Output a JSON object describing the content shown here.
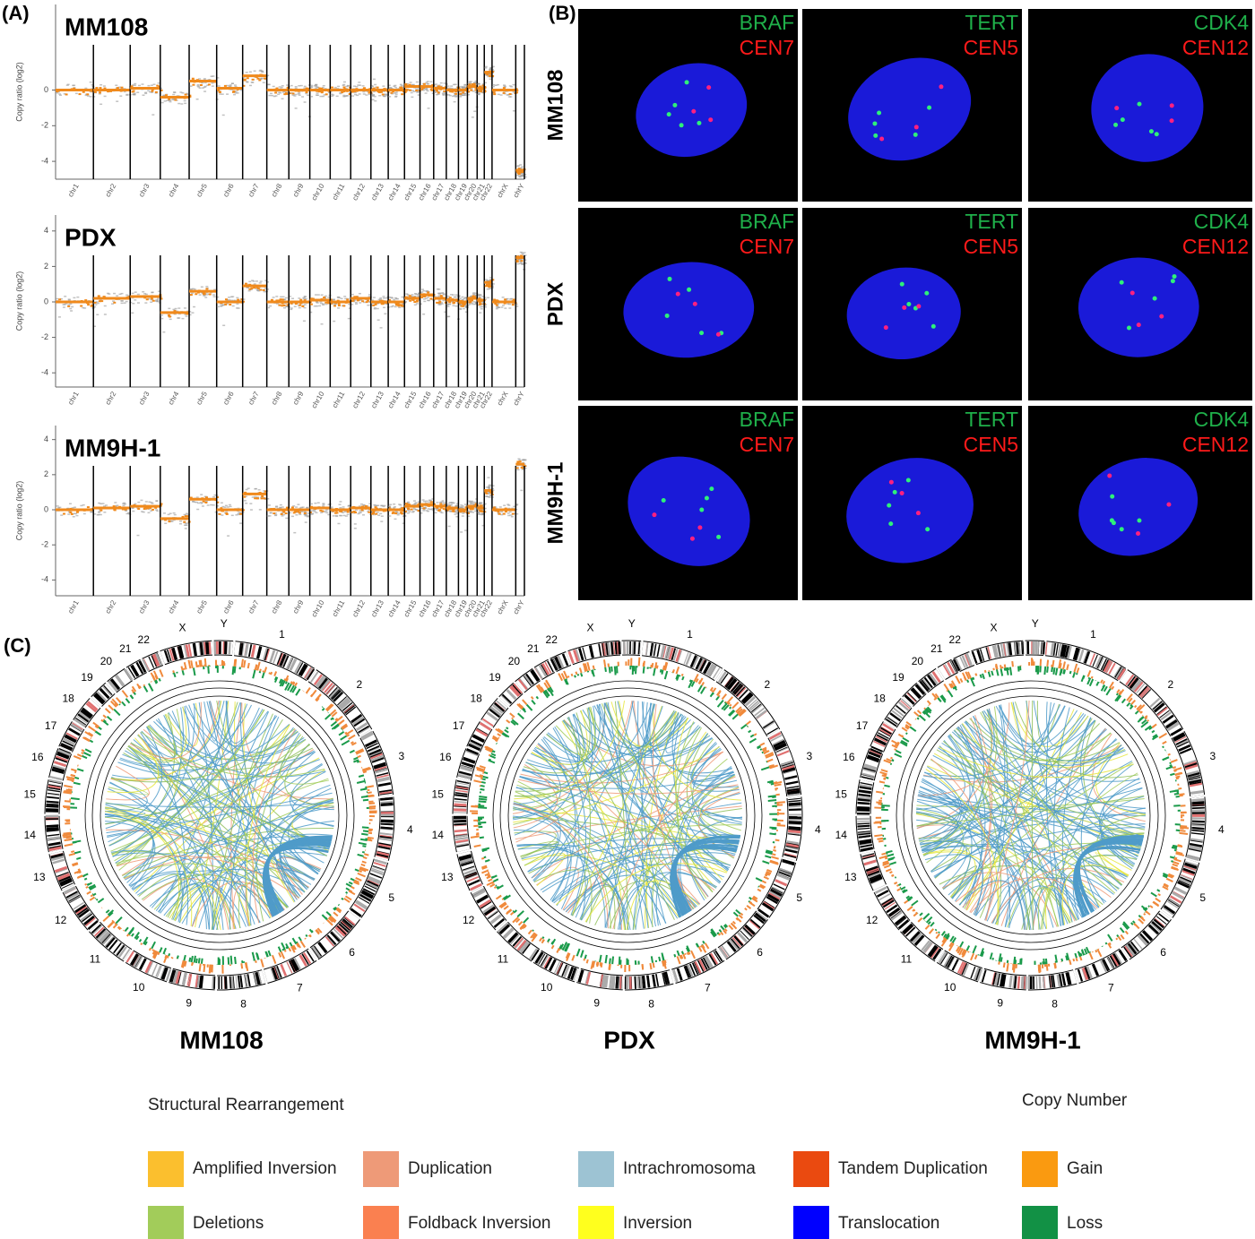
{
  "panel_labels": {
    "a": "(A)",
    "b": "(B)",
    "c": "(C)"
  },
  "copy_number": {
    "y_label": "Copy ratio (log2)",
    "chromosomes": [
      "chr1",
      "chr2",
      "chr3",
      "chr4",
      "chr5",
      "chr6",
      "chr7",
      "chr8",
      "chr9",
      "chr10",
      "chr11",
      "chr12",
      "chr13",
      "chr14",
      "chr15",
      "chr16",
      "chr17",
      "chr18",
      "chr19",
      "chr20",
      "chr21",
      "chr22",
      "chrX",
      "chrY"
    ],
    "plots": [
      {
        "sample": "MM108",
        "ylim": [
          -5,
          4.8
        ],
        "yticks": [
          0,
          -2,
          -4
        ],
        "levels": [
          0,
          0,
          0.1,
          -0.4,
          0.5,
          0.1,
          0.8,
          0,
          0,
          0,
          0,
          0,
          0,
          0,
          0.2,
          0.2,
          0.1,
          0,
          0,
          0.2,
          0.1,
          1,
          0,
          -4.5
        ]
      },
      {
        "sample": "PDX",
        "ylim": [
          -4.8,
          4.9
        ],
        "yticks": [
          4,
          2,
          0,
          -2,
          -4
        ],
        "levels": [
          0,
          0.2,
          0.3,
          -0.6,
          0.6,
          0,
          0.9,
          0,
          0,
          0.1,
          0,
          0.2,
          0,
          0,
          0.2,
          0.4,
          0.2,
          0.1,
          0,
          0.2,
          0.1,
          1.1,
          0,
          2.5
        ]
      },
      {
        "sample": "MM9H-1",
        "ylim": [
          -4.9,
          4.8
        ],
        "yticks": [
          4,
          2,
          0,
          -2,
          -4
        ],
        "levels": [
          0,
          0.1,
          0.2,
          -0.5,
          0.6,
          0,
          0.9,
          0,
          0,
          0.1,
          0,
          0.1,
          0,
          0,
          0.2,
          0.3,
          0.2,
          0.1,
          0,
          0.2,
          0.1,
          1.1,
          0,
          2.6
        ]
      }
    ]
  },
  "fish": {
    "rows": [
      "MM108",
      "PDX",
      "MM9H-1"
    ],
    "probes": [
      {
        "gene": "BRAF",
        "centromere": "CEN7"
      },
      {
        "gene": "TERT",
        "centromere": "CEN5"
      },
      {
        "gene": "CDK4",
        "centromere": "CEN12"
      }
    ]
  },
  "circos": {
    "chromosomes": [
      "1",
      "2",
      "3",
      "4",
      "5",
      "6",
      "7",
      "8",
      "9",
      "10",
      "11",
      "12",
      "13",
      "14",
      "15",
      "16",
      "17",
      "18",
      "19",
      "20",
      "21",
      "22",
      "X",
      "Y"
    ],
    "samples": [
      "MM108",
      "PDX",
      "MM9H-1"
    ]
  },
  "legend": {
    "structural_title": "Structural Rearrangement",
    "copy_title": "Copy Number",
    "items": [
      {
        "label": "Amplified Inversion",
        "color": "#fbbf2e"
      },
      {
        "label": "Duplication",
        "color": "#ee9a78"
      },
      {
        "label": "Intrachromosoma",
        "color": "#9dc3d3"
      },
      {
        "label": "Tandem Duplication",
        "color": "#ea4a10"
      },
      {
        "label": "Gain",
        "color": "#fa9a10"
      },
      {
        "label": "Deletions",
        "color": "#a2cc5a"
      },
      {
        "label": "Foldback Inversion",
        "color": "#fa8050"
      },
      {
        "label": "Inversion",
        "color": "#ffff1e"
      },
      {
        "label": "Translocation",
        "color": "#0000ff"
      },
      {
        "label": "Loss",
        "color": "#129145"
      }
    ]
  }
}
